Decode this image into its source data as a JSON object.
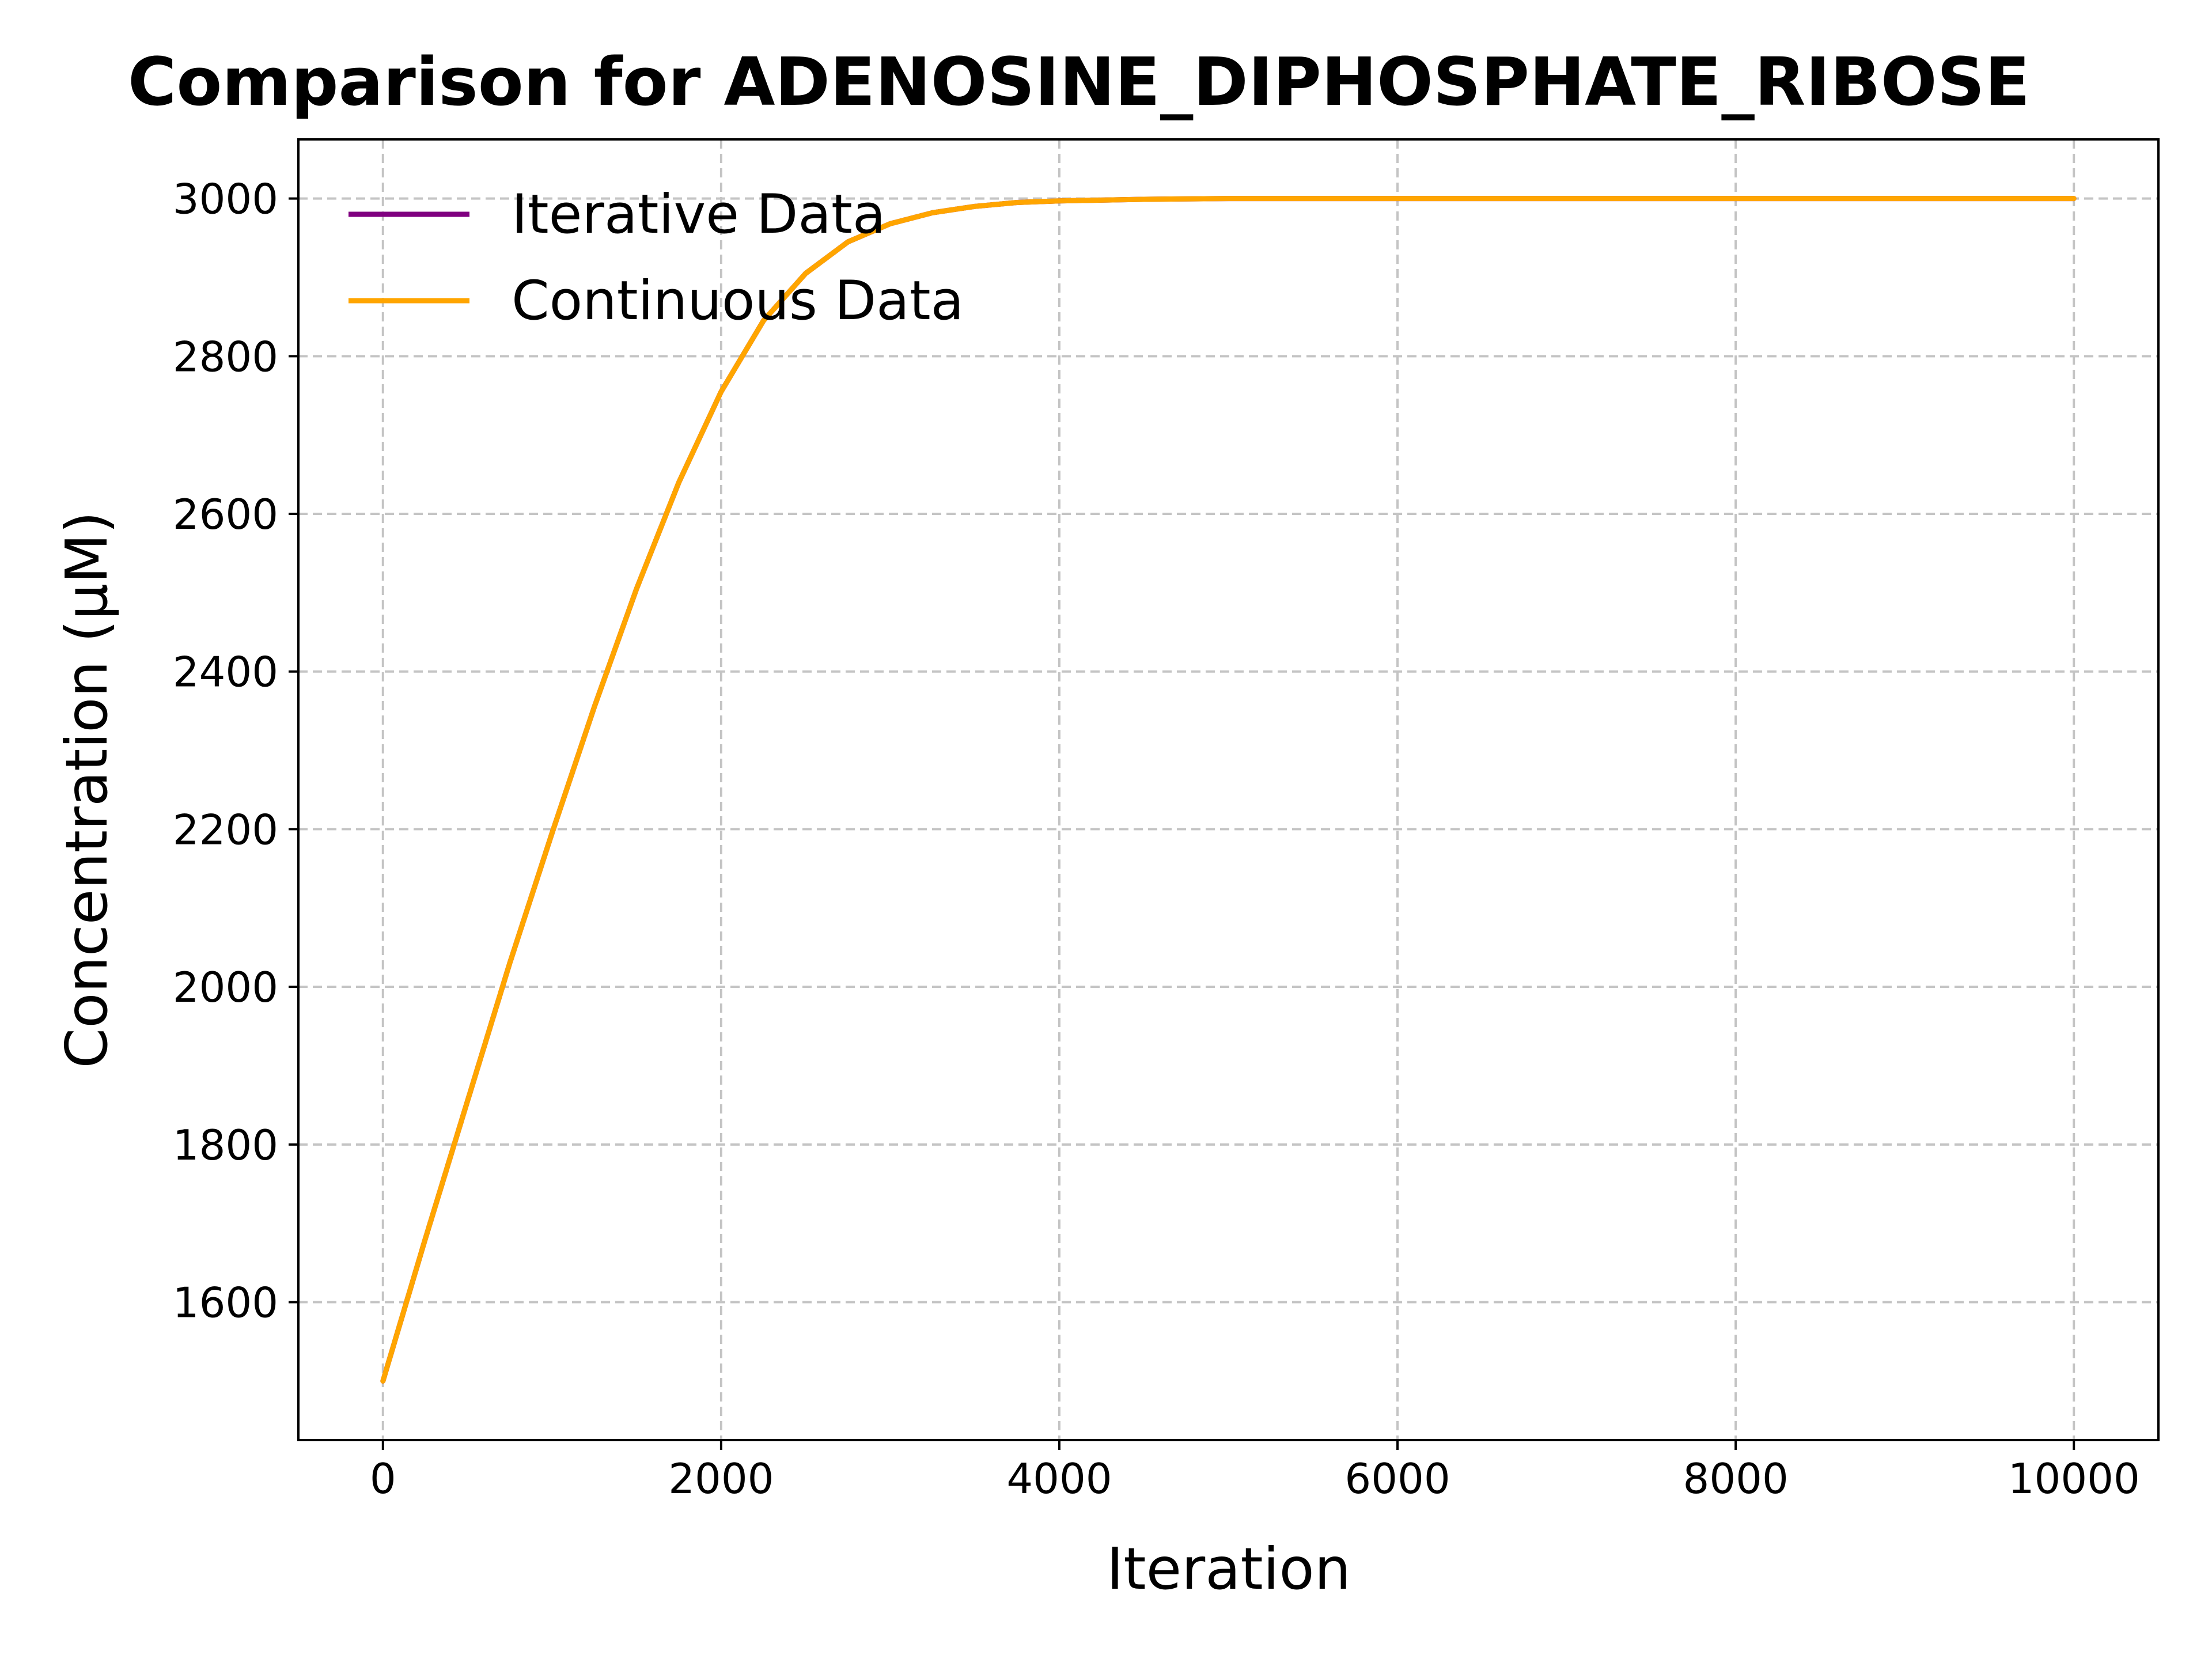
{
  "chart_data": {
    "type": "line",
    "title": "Comparison for ADENOSINE_DIPHOSPHATE_RIBOSE",
    "xlabel": "Iteration",
    "ylabel": "Concentration (μM)",
    "xlim": [
      -500,
      10500
    ],
    "ylim": [
      1425,
      3075
    ],
    "xticks": [
      0,
      2000,
      4000,
      6000,
      8000,
      10000
    ],
    "yticks": [
      1600,
      1800,
      2000,
      2200,
      2400,
      2600,
      2800,
      3000
    ],
    "grid": true,
    "legend_position": "top-left",
    "x": [
      0,
      250,
      500,
      750,
      1000,
      1250,
      1500,
      1750,
      2000,
      2250,
      2500,
      2750,
      3000,
      3250,
      3500,
      3750,
      4000,
      4500,
      5000,
      6000,
      7000,
      8000,
      9000,
      10000
    ],
    "series": [
      {
        "name": "Iterative Data",
        "color": "#800080",
        "values": [
          1500,
          1680,
          1855,
          2030,
          2195,
          2355,
          2505,
          2640,
          2755,
          2845,
          2905,
          2945,
          2968,
          2982,
          2990,
          2995,
          2997,
          2999,
          3000,
          3000,
          3000,
          3000,
          3000,
          3000
        ]
      },
      {
        "name": "Continuous Data",
        "color": "#ffa500",
        "values": [
          1500,
          1680,
          1855,
          2030,
          2195,
          2355,
          2505,
          2640,
          2755,
          2845,
          2905,
          2945,
          2968,
          2982,
          2990,
          2995,
          2997,
          2999,
          3000,
          3000,
          3000,
          3000,
          3000,
          3000
        ]
      }
    ]
  }
}
